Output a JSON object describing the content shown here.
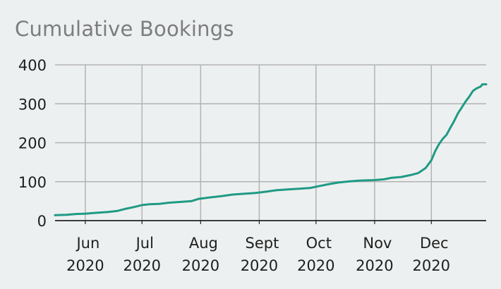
{
  "chart_data": {
    "type": "line",
    "title": "Cumulative Bookings",
    "xlabel": "",
    "ylabel": "",
    "ylim": [
      0,
      400
    ],
    "y_ticks": [
      0,
      100,
      200,
      300,
      400
    ],
    "x_ticks": [
      {
        "date": "2020-06-01",
        "month": "Jun",
        "year": "2020"
      },
      {
        "date": "2020-07-01",
        "month": "Jul",
        "year": "2020"
      },
      {
        "date": "2020-08-01",
        "month": "Aug",
        "year": "2020"
      },
      {
        "date": "2020-09-01",
        "month": "Sept",
        "year": "2020"
      },
      {
        "date": "2020-10-01",
        "month": "Oct",
        "year": "2020"
      },
      {
        "date": "2020-11-01",
        "month": "Nov",
        "year": "2020"
      },
      {
        "date": "2020-12-01",
        "month": "Dec",
        "year": "2020"
      }
    ],
    "xlim": [
      "2020-05-16",
      "2020-12-30"
    ],
    "grid": true,
    "colors": {
      "line": "#1f9a84",
      "grid": "#b3b3b3",
      "axis": "#222222",
      "title": "#7d7d7d",
      "background": "#edf0f0"
    },
    "series": [
      {
        "points": [
          [
            "2020-05-16",
            14
          ],
          [
            "2020-05-22",
            15
          ],
          [
            "2020-05-27",
            17
          ],
          [
            "2020-06-01",
            18
          ],
          [
            "2020-06-07",
            20
          ],
          [
            "2020-06-13",
            22
          ],
          [
            "2020-06-18",
            25
          ],
          [
            "2020-06-22",
            30
          ],
          [
            "2020-06-26",
            34
          ],
          [
            "2020-07-01",
            40
          ],
          [
            "2020-07-05",
            42
          ],
          [
            "2020-07-10",
            43
          ],
          [
            "2020-07-15",
            46
          ],
          [
            "2020-07-21",
            48
          ],
          [
            "2020-07-27",
            50
          ],
          [
            "2020-07-31",
            56
          ],
          [
            "2020-08-05",
            59
          ],
          [
            "2020-08-12",
            63
          ],
          [
            "2020-08-18",
            67
          ],
          [
            "2020-08-24",
            69
          ],
          [
            "2020-08-30",
            71
          ],
          [
            "2020-09-04",
            74
          ],
          [
            "2020-09-10",
            78
          ],
          [
            "2020-09-16",
            80
          ],
          [
            "2020-09-22",
            82
          ],
          [
            "2020-09-28",
            84
          ],
          [
            "2020-10-03",
            89
          ],
          [
            "2020-10-08",
            94
          ],
          [
            "2020-10-13",
            98
          ],
          [
            "2020-10-19",
            101
          ],
          [
            "2020-10-25",
            103
          ],
          [
            "2020-11-01",
            104
          ],
          [
            "2020-11-06",
            106
          ],
          [
            "2020-11-10",
            110
          ],
          [
            "2020-11-15",
            112
          ],
          [
            "2020-11-20",
            117
          ],
          [
            "2020-11-24",
            122
          ],
          [
            "2020-11-28",
            135
          ],
          [
            "2020-12-01",
            155
          ],
          [
            "2020-12-03",
            178
          ],
          [
            "2020-12-05",
            196
          ],
          [
            "2020-12-07",
            210
          ],
          [
            "2020-12-09",
            220
          ],
          [
            "2020-12-11",
            238
          ],
          [
            "2020-12-13",
            255
          ],
          [
            "2020-12-15",
            275
          ],
          [
            "2020-12-17",
            290
          ],
          [
            "2020-12-19",
            305
          ],
          [
            "2020-12-21",
            318
          ],
          [
            "2020-12-23",
            333
          ],
          [
            "2020-12-25",
            340
          ],
          [
            "2020-12-27",
            344
          ],
          [
            "2020-12-28",
            350
          ],
          [
            "2020-12-30",
            350
          ]
        ]
      }
    ]
  }
}
